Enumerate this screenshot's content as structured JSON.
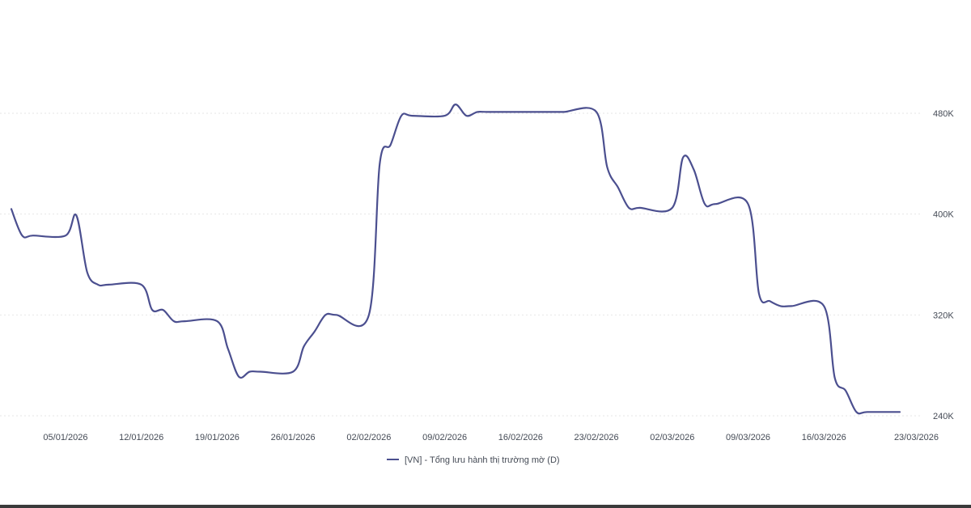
{
  "chart_data": {
    "type": "line",
    "title": "",
    "xlabel": "",
    "ylabel": "",
    "ylim": [
      240000,
      480000
    ],
    "y_ticks": [
      {
        "value": 480000,
        "label": "480K"
      },
      {
        "value": 400000,
        "label": "400K"
      },
      {
        "value": 320000,
        "label": "320K"
      },
      {
        "value": 240000,
        "label": "240K"
      }
    ],
    "x_ticks": [
      "05/01/2026",
      "12/01/2026",
      "19/01/2026",
      "26/01/2026",
      "02/02/2026",
      "09/02/2026",
      "16/02/2026",
      "23/02/2026",
      "02/03/2026",
      "09/03/2026",
      "16/03/2026",
      "23/03/2026"
    ],
    "grid": "horizontal-dotted",
    "legend_position": "bottom-center",
    "colors": {
      "series": "#4b4f8f",
      "grid": "#e6e6e6",
      "text": "#444a55"
    },
    "series": [
      {
        "name": "[VN] - Tổng lưu hành thị trường mờ (D)",
        "x": [
          "31/12/2025",
          "01/01/2026",
          "02/01/2026",
          "05/01/2026",
          "06/01/2026",
          "07/01/2026",
          "08/01/2026",
          "09/01/2026",
          "12/01/2026",
          "13/01/2026",
          "14/01/2026",
          "15/01/2026",
          "16/01/2026",
          "19/01/2026",
          "20/01/2026",
          "21/01/2026",
          "22/01/2026",
          "23/01/2026",
          "26/01/2026",
          "27/01/2026",
          "28/01/2026",
          "29/01/2026",
          "30/01/2026",
          "02/02/2026",
          "03/02/2026",
          "04/02/2026",
          "05/02/2026",
          "06/02/2026",
          "09/02/2026",
          "10/02/2026",
          "11/02/2026",
          "12/02/2026",
          "13/02/2026",
          "16/02/2026",
          "17/02/2026",
          "18/02/2026",
          "19/02/2026",
          "20/02/2026",
          "23/02/2026",
          "24/02/2026",
          "25/02/2026",
          "26/02/2026",
          "27/02/2026",
          "02/03/2026",
          "03/03/2026",
          "04/03/2026",
          "05/03/2026",
          "06/03/2026",
          "09/03/2026",
          "10/03/2026",
          "11/03/2026",
          "12/03/2026",
          "13/03/2026",
          "16/03/2026",
          "17/03/2026",
          "18/03/2026",
          "19/03/2026",
          "20/03/2026",
          "23/03/2026"
        ],
        "values": [
          404000,
          383000,
          383000,
          383000,
          399000,
          354000,
          344000,
          344000,
          344000,
          324000,
          324000,
          315000,
          315000,
          315000,
          293000,
          271000,
          275000,
          275000,
          275000,
          295000,
          307000,
          320000,
          320000,
          320000,
          440000,
          455000,
          478000,
          478000,
          478000,
          487000,
          478000,
          481000,
          481000,
          481000,
          481000,
          481000,
          481000,
          481000,
          481000,
          437000,
          421000,
          405000,
          405000,
          405000,
          445000,
          435000,
          408000,
          408000,
          408000,
          337000,
          331000,
          327000,
          327000,
          327000,
          270000,
          260000,
          243000,
          243000,
          243000
        ]
      }
    ]
  }
}
